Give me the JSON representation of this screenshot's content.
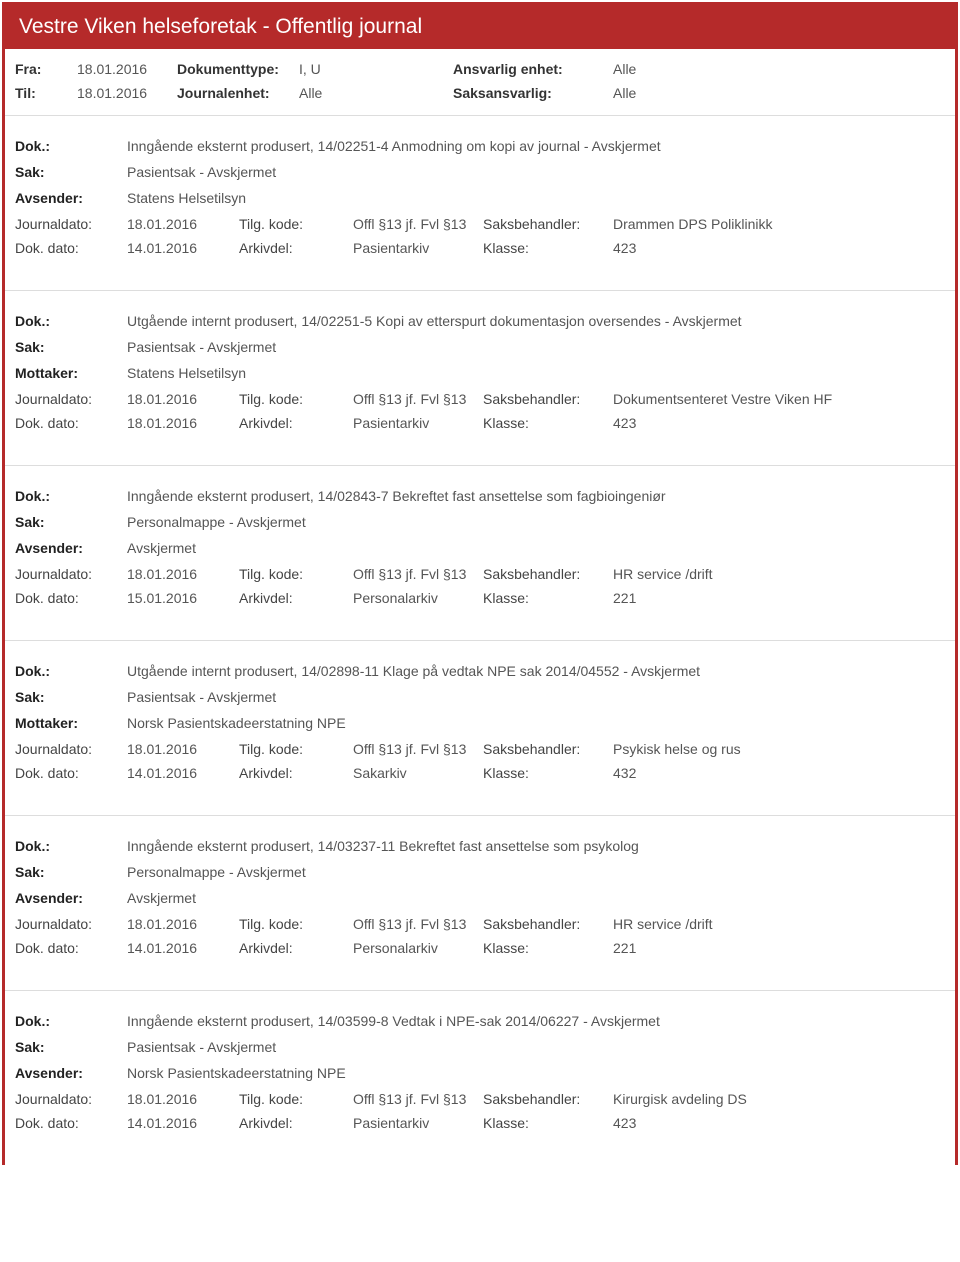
{
  "title": "Vestre Viken helseforetak - Offentlig journal",
  "header": {
    "labels": {
      "fra": "Fra:",
      "til": "Til:",
      "dokumenttype": "Dokumenttype:",
      "journalenhet": "Journalenhet:",
      "ansvarlig_enhet": "Ansvarlig enhet:",
      "saksansvarlig": "Saksansvarlig:"
    },
    "fra": "18.01.2016",
    "til": "18.01.2016",
    "dokumenttype": "I, U",
    "journalenhet": "Alle",
    "ansvarlig_enhet": "Alle",
    "saksansvarlig": "Alle"
  },
  "entry_labels": {
    "dok": "Dok.:",
    "sak": "Sak:",
    "avsender": "Avsender:",
    "mottaker": "Mottaker:",
    "journaldato": "Journaldato:",
    "dokdato": "Dok. dato:",
    "tilgkode": "Tilg. kode:",
    "arkivdel": "Arkivdel:",
    "saksbehandler": "Saksbehandler:",
    "klasse": "Klasse:"
  },
  "entries": [
    {
      "dok": "Inngående eksternt produsert, 14/02251-4 Anmodning om kopi av journal - Avskjermet",
      "sak": "Pasientsak - Avskjermet",
      "party_label": "Avsender:",
      "party": "Statens Helsetilsyn",
      "journaldato": "18.01.2016",
      "dokdato": "14.01.2016",
      "tilgkode": "Offl §13 jf. Fvl §13",
      "arkivdel": "Pasientarkiv",
      "saksbehandler": "Drammen DPS Poliklinikk",
      "klasse": "423"
    },
    {
      "dok": "Utgående internt produsert, 14/02251-5 Kopi av etterspurt dokumentasjon oversendes - Avskjermet",
      "sak": "Pasientsak - Avskjermet",
      "party_label": "Mottaker:",
      "party": "Statens Helsetilsyn",
      "journaldato": "18.01.2016",
      "dokdato": "18.01.2016",
      "tilgkode": "Offl §13 jf. Fvl §13",
      "arkivdel": "Pasientarkiv",
      "saksbehandler": "Dokumentsenteret Vestre Viken HF",
      "klasse": "423"
    },
    {
      "dok": "Inngående eksternt produsert, 14/02843-7 Bekreftet fast ansettelse som fagbioingeniør",
      "sak": "Personalmappe - Avskjermet",
      "party_label": "Avsender:",
      "party": "Avskjermet",
      "journaldato": "18.01.2016",
      "dokdato": "15.01.2016",
      "tilgkode": "Offl §13 jf. Fvl §13",
      "arkivdel": "Personalarkiv",
      "saksbehandler": "HR service /drift",
      "klasse": "221"
    },
    {
      "dok": "Utgående internt produsert, 14/02898-11 Klage på vedtak NPE sak 2014/04552 - Avskjermet",
      "sak": "Pasientsak - Avskjermet",
      "party_label": "Mottaker:",
      "party": "Norsk Pasientskadeerstatning NPE",
      "journaldato": "18.01.2016",
      "dokdato": "14.01.2016",
      "tilgkode": "Offl §13 jf. Fvl §13",
      "arkivdel": "Sakarkiv",
      "saksbehandler": "Psykisk helse og rus",
      "klasse": "432"
    },
    {
      "dok": "Inngående eksternt produsert, 14/03237-11 Bekreftet fast ansettelse som psykolog",
      "sak": "Personalmappe - Avskjermet",
      "party_label": "Avsender:",
      "party": "Avskjermet",
      "journaldato": "18.01.2016",
      "dokdato": "14.01.2016",
      "tilgkode": "Offl §13 jf. Fvl §13",
      "arkivdel": "Personalarkiv",
      "saksbehandler": "HR service /drift",
      "klasse": "221"
    },
    {
      "dok": "Inngående eksternt produsert, 14/03599-8 Vedtak i NPE-sak 2014/06227 - Avskjermet",
      "sak": "Pasientsak - Avskjermet",
      "party_label": "Avsender:",
      "party": "Norsk Pasientskadeerstatning NPE",
      "journaldato": "18.01.2016",
      "dokdato": "14.01.2016",
      "tilgkode": "Offl §13 jf. Fvl §13",
      "arkivdel": "Pasientarkiv",
      "saksbehandler": "Kirurgisk avdeling DS",
      "klasse": "423"
    }
  ]
}
